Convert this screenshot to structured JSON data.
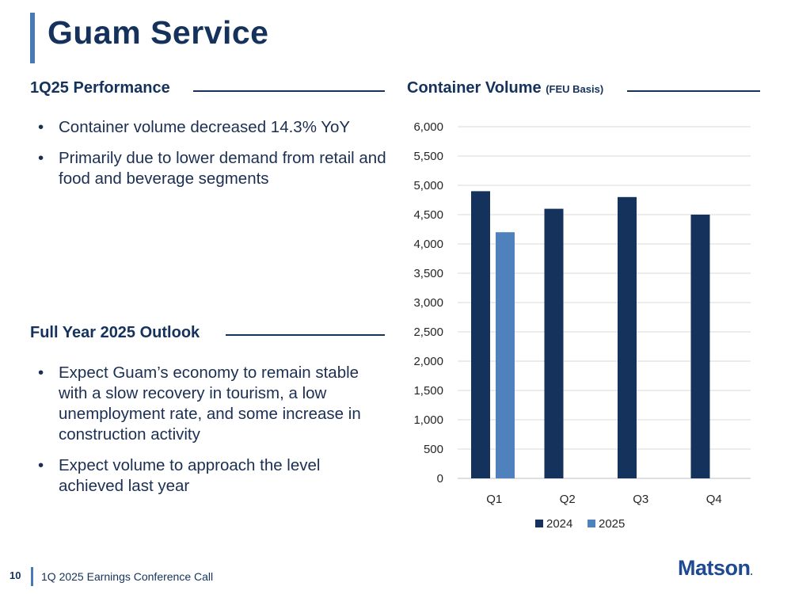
{
  "title": "Guam Service",
  "left": {
    "performance_heading": "1Q25 Performance",
    "performance_bullets": [
      "Container volume decreased 14.3% YoY",
      "Primarily due to lower demand from retail and food and beverage segments"
    ],
    "outlook_heading": "Full Year 2025 Outlook",
    "outlook_bullets": [
      "Expect Guam’s economy to remain stable with a slow recovery in tourism, a low unemployment rate, and some increase in construction activity",
      "Expect volume to approach the level achieved last year"
    ]
  },
  "chart_heading": {
    "main": "Container Volume",
    "sub": "(FEU Basis)"
  },
  "chart_data": {
    "type": "bar",
    "categories": [
      "Q1",
      "Q2",
      "Q3",
      "Q4"
    ],
    "series": [
      {
        "name": "2024",
        "values": [
          4900,
          4600,
          4800,
          4500
        ],
        "color": "#14325c"
      },
      {
        "name": "2025",
        "values": [
          4200,
          null,
          null,
          null
        ],
        "color": "#4f81bd"
      }
    ],
    "ylim": [
      0,
      6000
    ],
    "yticks": [
      0,
      500,
      1000,
      1500,
      2000,
      2500,
      3000,
      3500,
      4000,
      4500,
      5000,
      5500,
      6000
    ],
    "ytick_labels": [
      "0",
      "500",
      "1,000",
      "1,500",
      "2,000",
      "2,500",
      "3,000",
      "3,500",
      "4,000",
      "4,500",
      "5,000",
      "5,500",
      "6,000"
    ],
    "grid": true,
    "legend_position": "bottom"
  },
  "footer": {
    "page_number": "10",
    "text": "1Q 2025 Earnings Conference Call",
    "logo": "Matson",
    "logo_mark": "."
  }
}
